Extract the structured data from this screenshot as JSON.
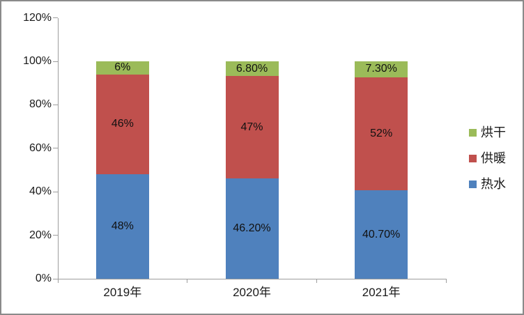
{
  "chart_data": {
    "type": "bar",
    "subtype": "stacked-100-column",
    "title": "",
    "xlabel": "",
    "ylabel": "",
    "categories": [
      "2019年",
      "2020年",
      "2021年"
    ],
    "series": [
      {
        "name": "热水",
        "color": "#4F81BD",
        "values": [
          48,
          46.2,
          40.7
        ],
        "labels": [
          "48%",
          "46.20%",
          "40.70%"
        ]
      },
      {
        "name": "供暖",
        "color": "#C0504D",
        "values": [
          46,
          47,
          52
        ],
        "labels": [
          "46%",
          "47%",
          "52%"
        ]
      },
      {
        "name": "烘干",
        "color": "#9BBB59",
        "values": [
          6,
          6.8,
          7.3
        ],
        "labels": [
          "6%",
          "6.80%",
          "7.30%"
        ]
      }
    ],
    "y_axis": {
      "min": 0,
      "max": 120,
      "tick_step": 20,
      "tick_labels": [
        "0%",
        "20%",
        "40%",
        "60%",
        "80%",
        "100%",
        "120%"
      ]
    },
    "legend_position": "right",
    "legend_order_top_to_bottom": [
      "烘干",
      "供暖",
      "热水"
    ],
    "grid": "off",
    "axis_color": "#9d9d9d",
    "label_color": "#111111"
  }
}
